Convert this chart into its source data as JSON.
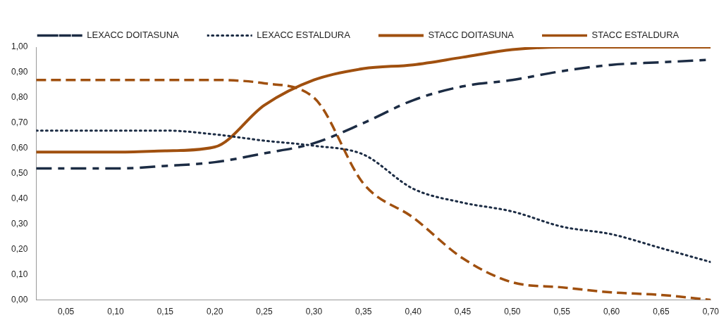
{
  "chart_data": {
    "type": "line",
    "legend": "top",
    "grid": false,
    "marker": "none",
    "x": [
      0.02,
      0.05,
      0.1,
      0.15,
      0.2,
      0.25,
      0.3,
      0.35,
      0.4,
      0.45,
      0.5,
      0.55,
      0.6,
      0.65,
      0.7
    ],
    "xlim": [
      0.02,
      0.7
    ],
    "xticks": [
      {
        "value": 0.05,
        "label": "0,05"
      },
      {
        "value": 0.1,
        "label": "0,10"
      },
      {
        "value": 0.15,
        "label": "0,15"
      },
      {
        "value": 0.2,
        "label": "0,20"
      },
      {
        "value": 0.25,
        "label": "0,25"
      },
      {
        "value": 0.3,
        "label": "0,30"
      },
      {
        "value": 0.35,
        "label": "0,35"
      },
      {
        "value": 0.4,
        "label": "0,40"
      },
      {
        "value": 0.45,
        "label": "0,45"
      },
      {
        "value": 0.5,
        "label": "0,50"
      },
      {
        "value": 0.55,
        "label": "0,55"
      },
      {
        "value": 0.6,
        "label": "0,60"
      },
      {
        "value": 0.65,
        "label": "0,65"
      },
      {
        "value": 0.7,
        "label": "0,70"
      }
    ],
    "ylim": [
      0,
      1
    ],
    "yticks": [
      {
        "value": 0,
        "label": "0,00"
      },
      {
        "value": 0.1,
        "label": "0,10"
      },
      {
        "value": 0.2,
        "label": "0,20"
      },
      {
        "value": 0.3,
        "label": "0,30"
      },
      {
        "value": 0.4,
        "label": "0,40"
      },
      {
        "value": 0.5,
        "label": "0,50"
      },
      {
        "value": 0.6,
        "label": "0,60"
      },
      {
        "value": 0.7,
        "label": "0,70"
      },
      {
        "value": 0.8,
        "label": "0,80"
      },
      {
        "value": 0.9,
        "label": "0,90"
      },
      {
        "value": 1,
        "label": "1,00"
      }
    ],
    "series": [
      {
        "name": "LEXACC DOITASUNA",
        "color": "#1c2c44",
        "line_style": "dashed",
        "values": [
          0.52,
          0.52,
          0.52,
          0.53,
          0.545,
          0.58,
          0.62,
          0.7,
          0.79,
          0.845,
          0.87,
          0.905,
          0.93,
          0.94,
          0.95
        ]
      },
      {
        "name": "LEXACC ESTALDURA",
        "color": "#1c2c44",
        "line_style": "dotted",
        "values": [
          0.67,
          0.67,
          0.67,
          0.67,
          0.655,
          0.63,
          0.61,
          0.575,
          0.44,
          0.385,
          0.35,
          0.29,
          0.26,
          0.205,
          0.15
        ]
      },
      {
        "name": "STACC DOITASUNA",
        "color": "#a0500f",
        "line_style": "solid",
        "values": [
          0.585,
          0.585,
          0.585,
          0.59,
          0.605,
          0.77,
          0.87,
          0.915,
          0.93,
          0.96,
          0.99,
          1.0,
          1.0,
          1.0,
          1.0
        ]
      },
      {
        "name": "STACC ESTALDURA",
        "color": "#a0500f",
        "line_style": "dashed",
        "values": [
          0.87,
          0.87,
          0.87,
          0.87,
          0.87,
          0.857,
          0.8,
          0.46,
          0.326,
          0.165,
          0.07,
          0.05,
          0.03,
          0.02,
          0.0
        ]
      }
    ]
  }
}
